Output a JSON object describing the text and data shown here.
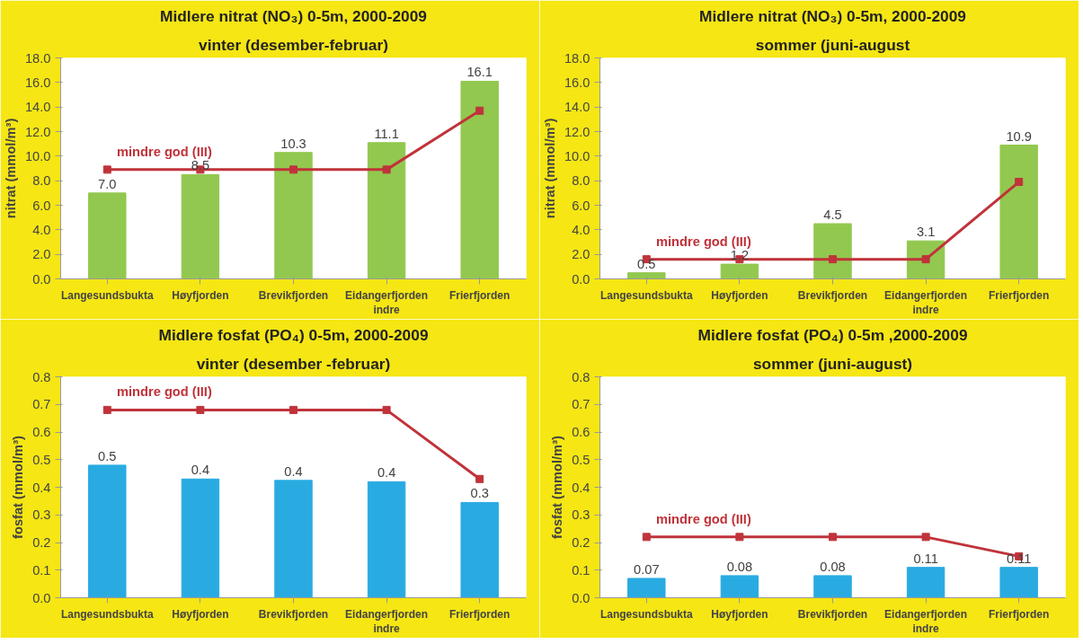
{
  "chart_data": [
    {
      "type": "bar",
      "title": "Midlere nitrat (NO₃) 0-5m, 2000-2009",
      "subtitle": "vinter (desember-februar)",
      "ylabel": "nitrat (mmol/m³)",
      "categories": [
        "Langesundsbukta",
        "Høyfjorden",
        "Brevikfjorden",
        "Eidangerfjorden\nindre",
        "Frierfjorden"
      ],
      "ylim": [
        0,
        18
      ],
      "yticks": [
        {
          "value": 0,
          "label": "0.0"
        },
        {
          "value": 2,
          "label": "2.0"
        },
        {
          "value": 4,
          "label": "4.0"
        },
        {
          "value": 6,
          "label": "6.0"
        },
        {
          "value": 8,
          "label": "8.0"
        },
        {
          "value": 10,
          "label": "10.0"
        },
        {
          "value": 12,
          "label": "12.0"
        },
        {
          "value": 14,
          "label": "14.0"
        },
        {
          "value": 16,
          "label": "16.0"
        },
        {
          "value": 18,
          "label": "18.0"
        }
      ],
      "grid": false,
      "series": [
        {
          "color": "#92c84f",
          "values": [
            7.0,
            8.5,
            10.3,
            11.1,
            16.1
          ],
          "value_labels": [
            "7.0",
            "8.5",
            "10.3",
            "11.1",
            "16.1"
          ]
        },
        {
          "type": "line",
          "name": "mindre god (III)",
          "color": "#c0333a",
          "marker": "square",
          "values": [
            8.9,
            8.9,
            8.9,
            8.9,
            13.7
          ]
        }
      ]
    },
    {
      "type": "bar",
      "title": "Midlere nitrat (NO₃) 0-5m, 2000-2009",
      "subtitle": "sommer (juni-august",
      "ylabel": "nitrat (mmol/m³)",
      "categories": [
        "Langesundsbukta",
        "Høyfjorden",
        "Brevikfjorden",
        "Eidangerfjorden\nindre",
        "Frierfjorden"
      ],
      "ylim": [
        0,
        18
      ],
      "yticks": [
        {
          "value": 0,
          "label": "0.0"
        },
        {
          "value": 2,
          "label": "2.0"
        },
        {
          "value": 4,
          "label": "4.0"
        },
        {
          "value": 6,
          "label": "6.0"
        },
        {
          "value": 8,
          "label": "8.0"
        },
        {
          "value": 10,
          "label": "10.0"
        },
        {
          "value": 12,
          "label": "12.0"
        },
        {
          "value": 14,
          "label": "14.0"
        },
        {
          "value": 16,
          "label": "16.0"
        },
        {
          "value": 18,
          "label": "18.0"
        }
      ],
      "grid": false,
      "series": [
        {
          "color": "#92c84f",
          "values": [
            0.5,
            1.2,
            4.5,
            3.1,
            10.9
          ],
          "value_labels": [
            "0.5",
            "1.2",
            "4.5",
            "3.1",
            "10.9"
          ]
        },
        {
          "type": "line",
          "name": "mindre god (III)",
          "color": "#c0333a",
          "marker": "square",
          "values": [
            1.6,
            1.6,
            1.6,
            1.6,
            7.9
          ]
        }
      ]
    },
    {
      "type": "bar",
      "title": "Midlere fosfat (PO₄) 0-5m, 2000-2009",
      "subtitle": "vinter (desember -februar)",
      "ylabel": "fosfat (mmol/m³)",
      "categories": [
        "Langesundsbukta",
        "Høyfjorden",
        "Brevikfjorden",
        "Eidangerfjorden\nindre",
        "Frierfjorden"
      ],
      "ylim": [
        0,
        0.8
      ],
      "yticks": [
        {
          "value": 0,
          "label": "0.0"
        },
        0.1,
        0.2,
        0.3,
        0.4,
        0.5,
        0.6,
        0.7,
        0.8
      ],
      "grid": false,
      "series": [
        {
          "color": "#29abe2",
          "values": [
            0.48,
            0.43,
            0.425,
            0.42,
            0.345
          ],
          "value_labels": [
            "0.5",
            "0.4",
            "0.4",
            "0.4",
            "0.3"
          ]
        },
        {
          "type": "line",
          "name": "mindre god (III)",
          "color": "#c0333a",
          "marker": "square",
          "values": [
            0.68,
            0.68,
            0.68,
            0.68,
            0.43
          ]
        }
      ]
    },
    {
      "type": "bar",
      "title": "Midlere fosfat (PO₄) 0-5m ,2000-2009",
      "subtitle": "sommer (juni-august)",
      "ylabel": "fosfat (mmol/m³)",
      "categories": [
        "Langesundsbukta",
        "Høyfjorden",
        "Brevikfjorden",
        "Eidangerfjorden\nindre",
        "Frierfjorden"
      ],
      "ylim": [
        0,
        0.8
      ],
      "yticks": [
        {
          "value": 0,
          "label": "0.0"
        },
        0.1,
        0.2,
        0.3,
        0.4,
        0.5,
        0.6,
        0.7,
        0.8
      ],
      "grid": false,
      "series": [
        {
          "color": "#29abe2",
          "values": [
            0.07,
            0.08,
            0.08,
            0.11,
            0.11
          ],
          "value_labels": [
            "0.07",
            "0.08",
            "0.08",
            "0.11",
            "0.11"
          ]
        },
        {
          "type": "line",
          "name": "mindre god (III)",
          "color": "#c0333a",
          "marker": "square",
          "values": [
            0.22,
            0.22,
            0.22,
            0.22,
            0.15
          ]
        }
      ]
    }
  ]
}
